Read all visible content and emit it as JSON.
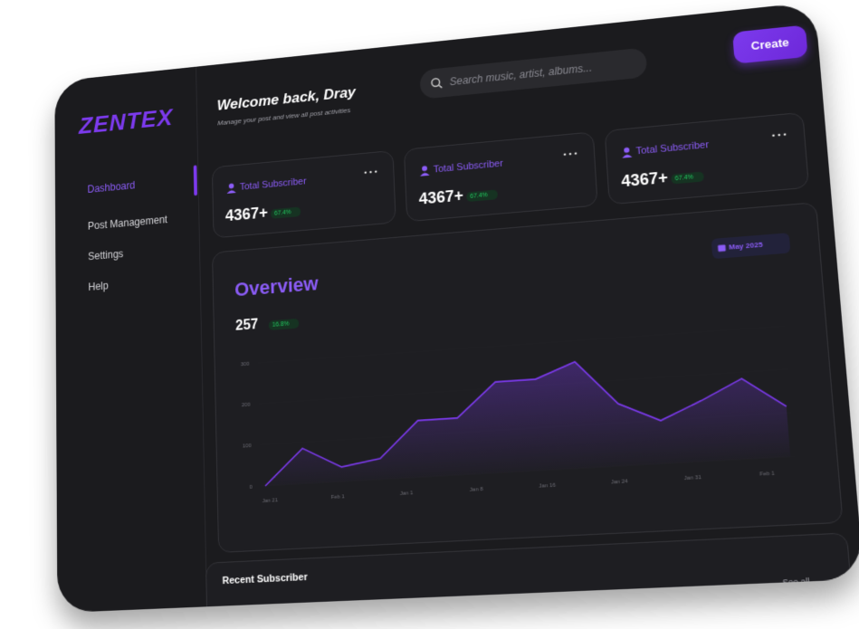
{
  "sidebar": {
    "logo": "ZENTEX",
    "nav": [
      "Dashboard",
      "Post Management",
      "Settings",
      "Help"
    ]
  },
  "header": {
    "title": "Welcome back, Dray",
    "subtitle": "Manage your post and view all post activities",
    "search_placeholder": "Search music, artist, albums...",
    "create_button": "Create"
  },
  "stats": [
    {
      "label": "Total Subscriber",
      "value": "4367+",
      "change": "67.4%"
    },
    {
      "label": "Total Subscriber",
      "value": "4367+",
      "change": "67.4%"
    },
    {
      "label": "Total Subscriber",
      "value": "4367+",
      "change": "67.4%"
    }
  ],
  "overview": {
    "title": "Overview",
    "value": "257",
    "change": "16.8%",
    "date_filter": "May 2025"
  },
  "chart_data": {
    "type": "area",
    "x_labels": [
      "Jan 21",
      "Feb 1",
      "Jan 1",
      "Jan 8",
      "Jan 16",
      "Jan 24",
      "Jan 31",
      "Feb 1"
    ],
    "values": [
      0,
      85,
      35,
      50,
      135,
      135,
      215,
      215,
      250,
      145,
      100,
      140,
      185,
      115
    ],
    "color": "#7c3aed",
    "ylim": [
      0,
      300
    ],
    "yticks": [
      0,
      100,
      200,
      300
    ]
  },
  "recent": {
    "title": "Recent Subscriber",
    "see_all": "See all"
  }
}
